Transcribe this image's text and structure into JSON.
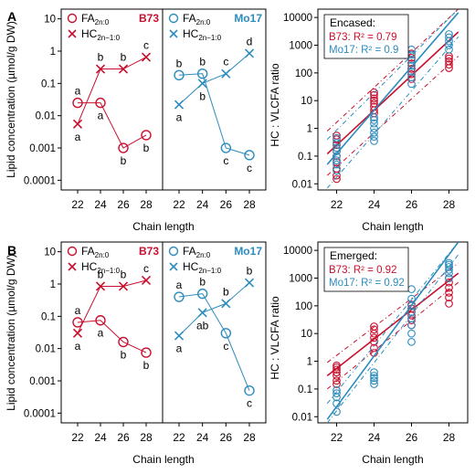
{
  "colors": {
    "b73": "#c8102e",
    "mo17": "#2b8cbe",
    "axis": "#000000"
  },
  "chart_data": [
    {
      "panel": "A",
      "type": "line",
      "layout": "two-facet",
      "ylabel": "Lipid concentration (µmol/g DW)",
      "xlabel": "Chain length",
      "x": [
        22,
        24,
        26,
        28
      ],
      "yscale": "log",
      "ylim": [
        5e-05,
        20
      ],
      "yticks": [
        "10",
        "1",
        "0.1",
        "0.01",
        "0.001",
        "0.0001"
      ],
      "legend": {
        "fa": "FA",
        "fa_sub": "2n:0",
        "hc": "HC",
        "hc_sub": "2n−1:0"
      },
      "facets": [
        {
          "genotype": "B73",
          "color": "b73",
          "fa": [
            0.025,
            0.025,
            0.001,
            0.0025
          ],
          "hc": [
            0.0055,
            0.28,
            0.28,
            0.65
          ],
          "fa_letters": [
            "a",
            "a",
            "b",
            "b"
          ],
          "hc_letters": [
            "a",
            "b",
            "b",
            "c"
          ]
        },
        {
          "genotype": "Mo17",
          "color": "mo17",
          "fa": [
            0.18,
            0.2,
            0.001,
            0.0006
          ],
          "hc": [
            0.022,
            0.1,
            0.2,
            0.85
          ],
          "fa_letters": [
            "b",
            "b",
            "c",
            "c"
          ],
          "hc_letters": [
            "a",
            "b",
            "c",
            "d"
          ]
        }
      ]
    },
    {
      "panel": "A",
      "type": "scatter",
      "ylabel": "HC : VLCFA ratio",
      "xlabel": "Chain length",
      "yscale": "log",
      "ylim": [
        0.006,
        20000
      ],
      "yticks": [
        "10000",
        "1000",
        "100",
        "10",
        "1",
        "0.1",
        "0.01"
      ],
      "legend_title": "Encased:",
      "series": [
        {
          "name": "B73: R² = 0.79",
          "color": "b73",
          "fit": [
            [
              21.5,
              0.12
            ],
            [
              28.5,
              3000
            ]
          ],
          "ci_low": [
            [
              21.5,
              0.02
            ],
            [
              28.5,
              400
            ]
          ],
          "ci_high": [
            [
              21.5,
              0.8
            ],
            [
              28.5,
              20000
            ]
          ],
          "points": [
            [
              22,
              0.015
            ],
            [
              22,
              0.02
            ],
            [
              22,
              0.035
            ],
            [
              22,
              0.06
            ],
            [
              22,
              0.1
            ],
            [
              22,
              0.15
            ],
            [
              22,
              0.25
            ],
            [
              22,
              0.4
            ],
            [
              22,
              0.55
            ],
            [
              24,
              3.5
            ],
            [
              24,
              4.5
            ],
            [
              24,
              6
            ],
            [
              24,
              8
            ],
            [
              24,
              10
            ],
            [
              24,
              12
            ],
            [
              24,
              16
            ],
            [
              24,
              20
            ],
            [
              26,
              60
            ],
            [
              26,
              90
            ],
            [
              26,
              140
            ],
            [
              26,
              220
            ],
            [
              26,
              350
            ],
            [
              26,
              500
            ],
            [
              28,
              150
            ],
            [
              28,
              200
            ],
            [
              28,
              260
            ],
            [
              28,
              330
            ],
            [
              28,
              400
            ]
          ]
        },
        {
          "name": "Mo17: R² = 0.9",
          "color": "mo17",
          "fit": [
            [
              21.5,
              0.05
            ],
            [
              28.5,
              15000
            ]
          ],
          "ci_low": [
            [
              21.5,
              0.007
            ],
            [
              28.5,
              2000
            ]
          ],
          "ci_high": [
            [
              21.5,
              0.4
            ],
            [
              28.5,
              20000
            ]
          ],
          "points": [
            [
              22,
              0.03
            ],
            [
              22,
              0.05
            ],
            [
              22,
              0.07
            ],
            [
              22,
              0.1
            ],
            [
              22,
              0.15
            ],
            [
              22,
              0.2
            ],
            [
              22,
              0.3
            ],
            [
              22,
              0.45
            ],
            [
              24,
              0.35
            ],
            [
              24,
              0.5
            ],
            [
              24,
              0.7
            ],
            [
              24,
              1
            ],
            [
              24,
              1.5
            ],
            [
              24,
              2
            ],
            [
              24,
              2.5
            ],
            [
              26,
              40
            ],
            [
              26,
              70
            ],
            [
              26,
              110
            ],
            [
              26,
              180
            ],
            [
              26,
              300
            ],
            [
              26,
              450
            ],
            [
              26,
              700
            ],
            [
              28,
              700
            ],
            [
              28,
              1000
            ],
            [
              28,
              1400
            ],
            [
              28,
              1900
            ],
            [
              28,
              2500
            ]
          ]
        }
      ]
    },
    {
      "panel": "B",
      "type": "line",
      "layout": "two-facet",
      "ylabel": "Lipid concentration (µmol/g DW)",
      "xlabel": "Chain length",
      "x": [
        22,
        24,
        26,
        28
      ],
      "yscale": "log",
      "ylim": [
        5e-05,
        20
      ],
      "yticks": [
        "10",
        "1",
        "0.1",
        "0.01",
        "0.001",
        "0.0001"
      ],
      "legend": {
        "fa": "FA",
        "fa_sub": "2n:0",
        "hc": "HC",
        "hc_sub": "2n−1:0"
      },
      "facets": [
        {
          "genotype": "B73",
          "color": "b73",
          "fa": [
            0.065,
            0.075,
            0.016,
            0.0075
          ],
          "hc": [
            0.03,
            0.85,
            0.85,
            1.3
          ],
          "fa_letters": [
            "a",
            "a",
            "b",
            "b"
          ],
          "hc_letters": [
            "a",
            "b",
            "b",
            "c"
          ]
        },
        {
          "genotype": "Mo17",
          "color": "mo17",
          "fa": [
            0.4,
            0.5,
            0.03,
            0.0005
          ],
          "hc": [
            0.025,
            0.13,
            0.25,
            1.1
          ],
          "fa_letters": [
            "a",
            "b",
            "c",
            "c"
          ],
          "hc_letters": [
            "a",
            "ab",
            "b",
            "b"
          ]
        }
      ]
    },
    {
      "panel": "B",
      "type": "scatter",
      "ylabel": "HC : VLCFA ratio",
      "xlabel": "Chain length",
      "yscale": "log",
      "ylim": [
        0.006,
        20000
      ],
      "yticks": [
        "10000",
        "1000",
        "100",
        "10",
        "1",
        "0.1",
        "0.01"
      ],
      "legend_title": "Emerged:",
      "series": [
        {
          "name": "B73: R² = 0.92",
          "color": "b73",
          "fit": [
            [
              21.5,
              0.3
            ],
            [
              28.5,
              1500
            ]
          ],
          "ci_low": [
            [
              21.5,
              0.1
            ],
            [
              28.5,
              700
            ]
          ],
          "ci_high": [
            [
              21.5,
              0.9
            ],
            [
              28.5,
              3500
            ]
          ],
          "points": [
            [
              22,
              0.15
            ],
            [
              22,
              0.2
            ],
            [
              22,
              0.3
            ],
            [
              22,
              0.4
            ],
            [
              22,
              0.5
            ],
            [
              22,
              0.6
            ],
            [
              22,
              0.7
            ],
            [
              24,
              2
            ],
            [
              24,
              3
            ],
            [
              24,
              5
            ],
            [
              24,
              7
            ],
            [
              24,
              10
            ],
            [
              24,
              14
            ],
            [
              24,
              18
            ],
            [
              26,
              20
            ],
            [
              26,
              30
            ],
            [
              26,
              45
            ],
            [
              26,
              60
            ],
            [
              26,
              80
            ],
            [
              26,
              110
            ],
            [
              28,
              120
            ],
            [
              28,
              200
            ],
            [
              28,
              300
            ],
            [
              28,
              450
            ],
            [
              28,
              700
            ],
            [
              28,
              1000
            ]
          ]
        },
        {
          "name": "Mo17: R² = 0.92",
          "color": "mo17",
          "fit": [
            [
              21.5,
              0.008
            ],
            [
              28.5,
              20000
            ]
          ],
          "ci_low": [
            [
              21.5,
              0.006
            ],
            [
              28.5,
              7000
            ]
          ],
          "ci_high": [
            [
              21.5,
              0.03
            ],
            [
              28.5,
              20000
            ]
          ],
          "points": [
            [
              22,
              0.015
            ],
            [
              22,
              0.03
            ],
            [
              22,
              0.05
            ],
            [
              22,
              0.07
            ],
            [
              22,
              0.09
            ],
            [
              24,
              0.15
            ],
            [
              24,
              0.2
            ],
            [
              24,
              0.25
            ],
            [
              24,
              0.3
            ],
            [
              24,
              0.4
            ],
            [
              26,
              5
            ],
            [
              26,
              10
            ],
            [
              26,
              20
            ],
            [
              26,
              35
            ],
            [
              26,
              60
            ],
            [
              26,
              100
            ],
            [
              26,
              180
            ],
            [
              26,
              400
            ],
            [
              28,
              1000
            ],
            [
              28,
              1500
            ],
            [
              28,
              2000
            ],
            [
              28,
              2500
            ],
            [
              28,
              3000
            ],
            [
              28,
              3500
            ]
          ]
        }
      ]
    }
  ]
}
